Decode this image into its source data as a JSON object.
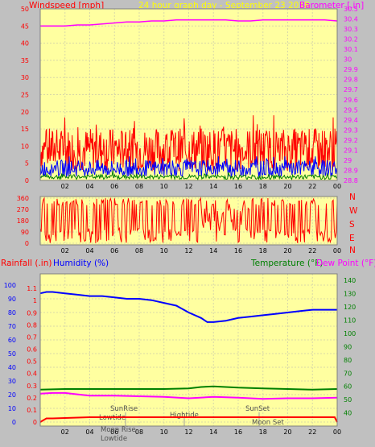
{
  "header": {
    "windspeed_label": "Windspeed [mph]",
    "graph_title": "24 hour graph day - September 23 2018",
    "barometer_label": "Barometer [.in]"
  },
  "legend": {
    "rainfall": "Rainfall (.in)",
    "humidity": "Humidity (%)",
    "temperature": "Temperature (°F)",
    "dewpoint": "Dew Point (°F)"
  },
  "direction_letters": [
    "N",
    "W",
    "S",
    "E",
    "N"
  ],
  "annotations": {
    "sunrise": "SunRise",
    "lowtide_1": "Lowtide",
    "moonrise": "Moon Rise",
    "lowtide_2": "Lowtide",
    "hightide": "Hightide",
    "sunset": "SunSet",
    "moonset": "Moon Set"
  },
  "colors": {
    "plot_bg": "#ffffa0",
    "frame_bg": "#c0c0c0",
    "wind": "#ff0000",
    "wind_mid": "#0000ff",
    "wind_low": "#008000",
    "barometer": "#ff00ff",
    "humidity": "#0000ff",
    "temperature": "#008000",
    "dewpoint": "#ff00ff",
    "rainfall": "#ff0000",
    "title": "#ffff00"
  },
  "chart_data": [
    {
      "type": "line",
      "x_unit": "hour of day",
      "x_ticks": [
        "02",
        "04",
        "06",
        "08",
        "10",
        "12",
        "14",
        "16",
        "18",
        "20",
        "22",
        "00"
      ],
      "left_axis": {
        "label": "Windspeed [mph]",
        "range": [
          0,
          50
        ],
        "ticks": [
          0,
          5,
          10,
          15,
          20,
          25,
          30,
          35,
          40,
          45,
          50
        ]
      },
      "right_axis": {
        "label": "Barometer [.in]",
        "range": [
          28.8,
          30.5
        ],
        "ticks": [
          "28.8",
          "28.9",
          "29",
          "29.1",
          "29.2",
          "29.3",
          "29.4",
          "29.5",
          "29.6",
          "29.7",
          "29.8",
          "29.9",
          "30",
          "30.1",
          "30.2",
          "30.3",
          "30.4",
          "30.5"
        ]
      },
      "barometer": {
        "x": [
          0,
          1,
          2,
          3,
          4,
          5,
          6,
          7,
          8,
          9,
          10,
          11,
          12,
          13,
          14,
          15,
          16,
          17,
          18,
          19,
          20,
          21,
          22,
          23,
          24
        ],
        "y": [
          30.33,
          30.33,
          30.33,
          30.34,
          30.34,
          30.35,
          30.36,
          30.37,
          30.37,
          30.38,
          30.38,
          30.39,
          30.39,
          30.39,
          30.39,
          30.39,
          30.38,
          30.38,
          30.39,
          30.39,
          30.39,
          30.39,
          30.39,
          30.39,
          30.38
        ]
      },
      "wind_gust": {
        "approx_mean": 9,
        "approx_max": 19
      },
      "wind_average": {
        "approx_mean": 3.5,
        "approx_max": 7
      },
      "wind_low": {
        "approx_mean": 1,
        "approx_max": 3
      }
    },
    {
      "type": "line",
      "x_ticks": [
        "02",
        "04",
        "06",
        "08",
        "10",
        "12",
        "14",
        "16",
        "18",
        "20",
        "22",
        "00"
      ],
      "left_axis": {
        "label": "",
        "range": [
          0,
          360
        ],
        "ticks": [
          0,
          90,
          180,
          270,
          360
        ]
      },
      "right_labels": [
        "N",
        "W",
        "S",
        "E",
        "N"
      ],
      "wind_direction": {
        "approx_range": [
          0,
          360
        ]
      }
    },
    {
      "type": "line",
      "x_ticks": [
        "02",
        "04",
        "06",
        "08",
        "10",
        "12",
        "14",
        "16",
        "18",
        "20",
        "22",
        "00"
      ],
      "left_axis_rain": {
        "label": "Rainfall (.in)",
        "range": [
          0,
          1.2
        ],
        "ticks": [
          "0",
          "0.1",
          "0.2",
          "0.3",
          "0.4",
          "0.5",
          "0.6",
          "0.7",
          "0.8",
          "0.9",
          "1",
          "1.1"
        ]
      },
      "left_axis_humidity": {
        "label": "Humidity (%)",
        "range": [
          0,
          100
        ],
        "ticks": [
          0,
          10,
          20,
          30,
          40,
          50,
          60,
          70,
          80,
          90,
          100
        ]
      },
      "right_axis_temp": {
        "label": "Temperature (°F)",
        "range": [
          30,
          145
        ],
        "ticks": [
          40,
          50,
          60,
          70,
          80,
          90,
          100,
          110,
          120,
          130,
          140
        ]
      },
      "humidity": {
        "x": [
          0,
          0.5,
          1,
          2,
          3,
          4,
          5,
          6,
          7,
          8,
          9,
          10,
          11,
          12,
          13,
          13.5,
          14,
          15,
          16,
          17,
          18,
          19,
          20,
          21,
          22,
          23,
          24
        ],
        "y": [
          94,
          95,
          95,
          94,
          93,
          92,
          92,
          91,
          90,
          90,
          89,
          87,
          85,
          80,
          76,
          73,
          73,
          74,
          76,
          77,
          78,
          79,
          80,
          81,
          82,
          82,
          82
        ]
      },
      "temperature": {
        "x": [
          0,
          2,
          4,
          6,
          8,
          10,
          12,
          13,
          14,
          15,
          16,
          18,
          20,
          22,
          24
        ],
        "y": [
          57.5,
          58,
          58,
          58,
          58,
          58,
          58.5,
          59.5,
          60,
          59.5,
          59,
          58.5,
          58,
          57.5,
          58
        ]
      },
      "dewpoint": {
        "x": [
          0,
          1,
          2,
          3,
          4,
          6,
          8,
          10,
          12,
          14,
          16,
          18,
          20,
          22,
          24
        ],
        "y": [
          54.5,
          55,
          55,
          54,
          53,
          53,
          52.5,
          52,
          51,
          52,
          51.5,
          50.5,
          51,
          51,
          51.5
        ]
      },
      "rainfall": {
        "x": [
          0,
          0.5,
          1,
          4,
          8,
          12,
          16,
          20,
          23.8,
          24
        ],
        "y": [
          0,
          0.03,
          0.03,
          0.04,
          0.04,
          0.04,
          0.04,
          0.04,
          0.04,
          0
        ]
      }
    }
  ]
}
